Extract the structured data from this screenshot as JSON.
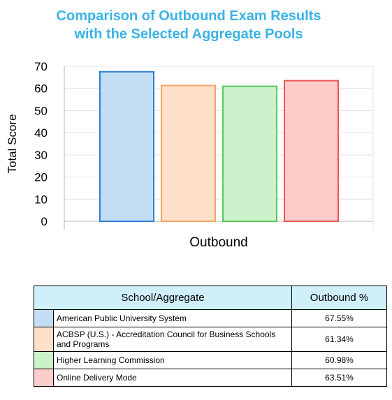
{
  "title": {
    "line1": "Comparison of Outbound Exam Results",
    "line2": "with the Selected Aggregate Pools"
  },
  "chart_data": {
    "type": "bar",
    "categories": [
      "Outbound"
    ],
    "xlabel": "Outbound",
    "ylabel": "Total Score",
    "ylim": [
      0,
      70
    ],
    "yticks": [
      0,
      10,
      20,
      30,
      40,
      50,
      60,
      70
    ],
    "grid": true,
    "series": [
      {
        "name": "American Public University System",
        "value": 67.55,
        "fill": "#c4ddf5",
        "stroke": "#2e7fd1"
      },
      {
        "name": "ACBSP (U.S.) - Accreditation Council for Business Schools and Programs",
        "value": 61.34,
        "fill": "#fde0c7",
        "stroke": "#f5a564"
      },
      {
        "name": "Higher Learning Commission",
        "value": 60.98,
        "fill": "#ccf2cc",
        "stroke": "#56c956"
      },
      {
        "name": "Online Delivery Mode",
        "value": 63.51,
        "fill": "#ffcccc",
        "stroke": "#e85555"
      }
    ]
  },
  "table": {
    "header_school": "School/Aggregate",
    "header_pct": "Outbound %",
    "rows": [
      {
        "school": "American Public University System",
        "pct": "67.55%",
        "color": "#c4ddf5"
      },
      {
        "school": "ACBSP (U.S.) - Accreditation Council for Business Schools and Programs",
        "pct": "61.34%",
        "color": "#fde0c7"
      },
      {
        "school": "Higher Learning Commission",
        "pct": "60.98%",
        "color": "#ccf2cc"
      },
      {
        "school": "Online Delivery Mode",
        "pct": "63.51%",
        "color": "#ffcccc"
      }
    ]
  }
}
